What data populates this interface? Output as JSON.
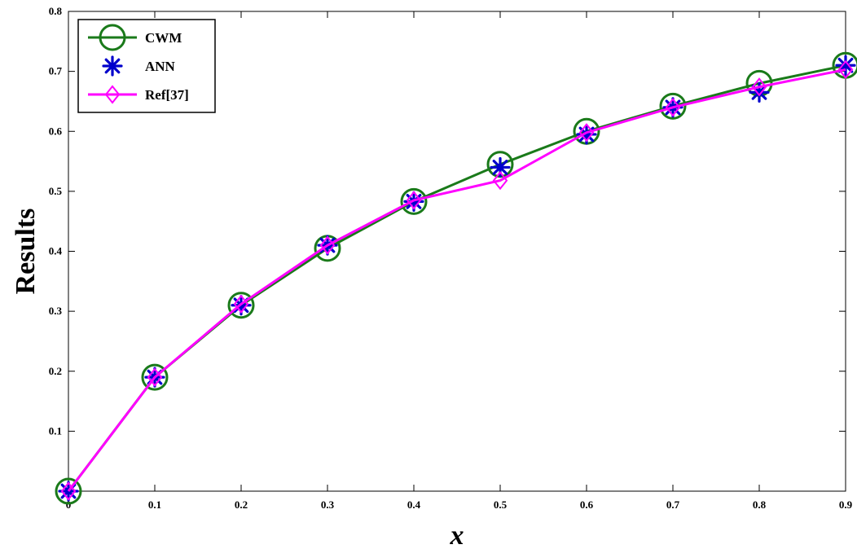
{
  "chart_data": {
    "type": "line",
    "title": "",
    "xlabel": "x",
    "ylabel": "Results",
    "xlim": [
      0,
      0.9
    ],
    "ylim": [
      0,
      0.8
    ],
    "grid": false,
    "legend_position": "top-left",
    "x": [
      0,
      0.1,
      0.2,
      0.3,
      0.4,
      0.5,
      0.6,
      0.7,
      0.8,
      0.9
    ],
    "x_tick_labels": [
      "0",
      "0.1",
      "0.2",
      "0.3",
      "0.4",
      "0.5",
      "0.6",
      "0.7",
      "0.8",
      "0.9"
    ],
    "y_tick_labels": [
      "0.1",
      "0.2",
      "0.3",
      "0.4",
      "0.5",
      "0.6",
      "0.7",
      "0.8"
    ],
    "y_tick_values": [
      0.1,
      0.2,
      0.3,
      0.4,
      0.5,
      0.6,
      0.7,
      0.8
    ],
    "series": [
      {
        "name": "CWM",
        "values": [
          0,
          0.19,
          0.31,
          0.405,
          0.483,
          0.545,
          0.6,
          0.642,
          0.68,
          0.71
        ],
        "color": "#1a7a1a",
        "marker": "circle",
        "line": true
      },
      {
        "name": "ANN",
        "values": [
          0,
          0.19,
          0.31,
          0.41,
          0.483,
          0.54,
          0.595,
          0.64,
          0.665,
          0.71
        ],
        "color": "#0000cc",
        "marker": "asterisk",
        "line": false
      },
      {
        "name": "Ref[37]",
        "values": [
          0,
          0.19,
          0.312,
          0.41,
          0.485,
          0.518,
          0.598,
          0.64,
          0.674,
          0.703
        ],
        "color": "#ff00ff",
        "marker": "diamond",
        "line": true
      }
    ]
  }
}
